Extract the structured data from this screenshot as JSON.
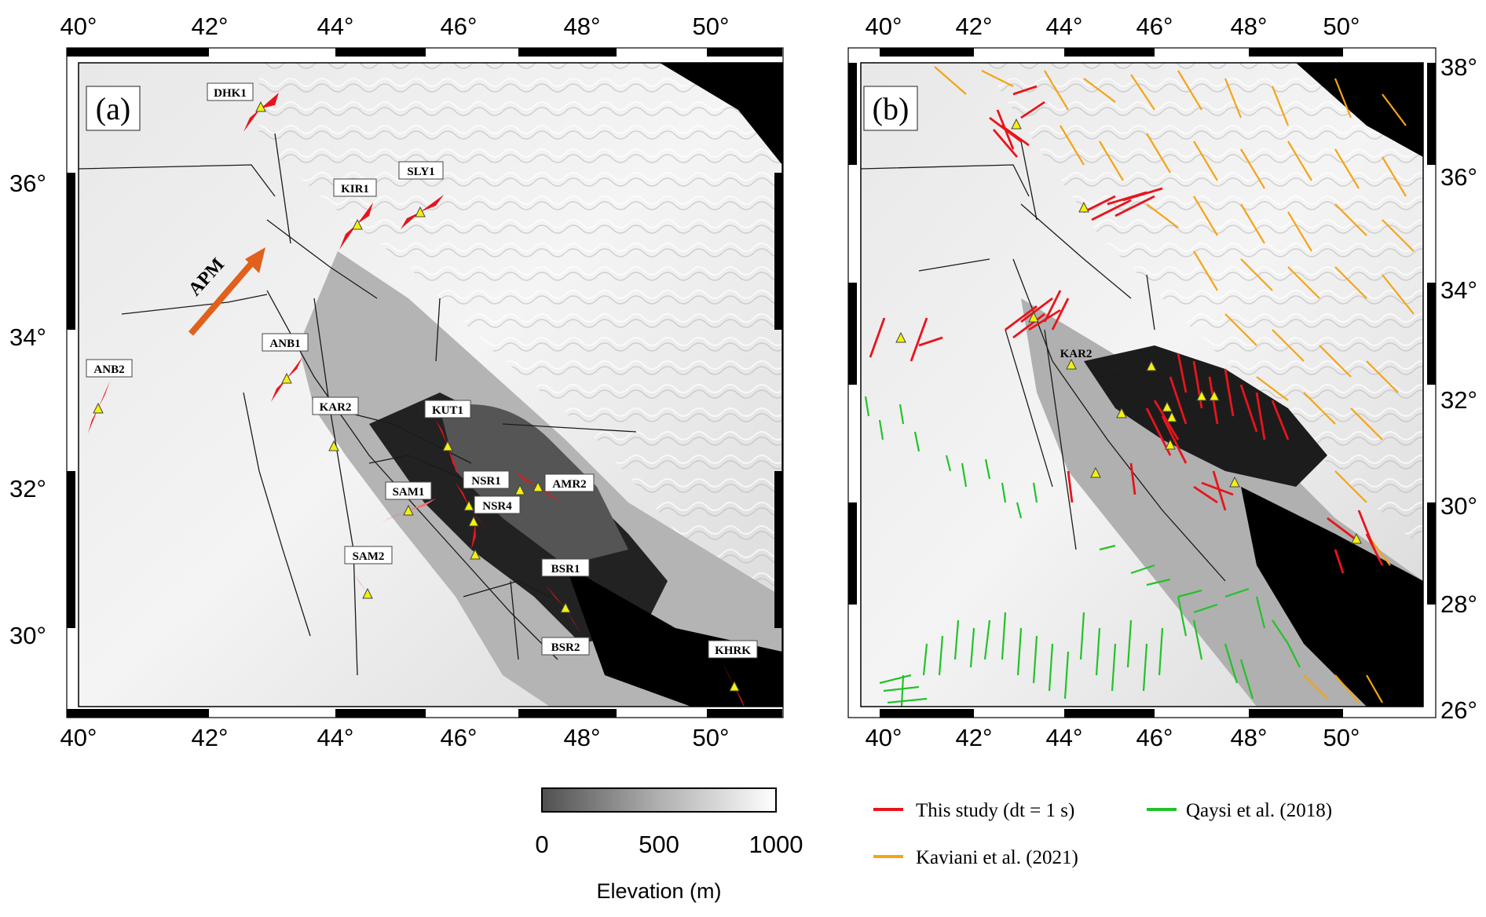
{
  "panels": [
    {
      "id": "a",
      "letter": "(a)",
      "lon_ticks": [
        "40°",
        "42°",
        "44°",
        "46°",
        "48°",
        "50°"
      ],
      "lat_ticks": [
        "30°",
        "32°",
        "34°",
        "36°"
      ],
      "apm_label": "APM",
      "stations": [
        {
          "code": "DHK1"
        },
        {
          "code": "KIR1"
        },
        {
          "code": "SLY1"
        },
        {
          "code": "ANB1"
        },
        {
          "code": "ANB2"
        },
        {
          "code": "KAR2"
        },
        {
          "code": "KUT1"
        },
        {
          "code": "SAM1"
        },
        {
          "code": "NSR1"
        },
        {
          "code": "NSR4"
        },
        {
          "code": "AMR2"
        },
        {
          "code": "SAM2"
        },
        {
          "code": "BSR1"
        },
        {
          "code": "BSR2"
        },
        {
          "code": "KHRK"
        }
      ]
    },
    {
      "id": "b",
      "letter": "(b)",
      "lon_ticks": [
        "40°",
        "42°",
        "44°",
        "46°",
        "48°",
        "50°"
      ],
      "lat_ticks": [
        "26°",
        "28°",
        "30°",
        "32°",
        "34°",
        "36°",
        "38°"
      ],
      "stations": [
        {
          "code": "KAR2"
        }
      ]
    }
  ],
  "colorbar": {
    "ticks": [
      "0",
      "500",
      "1000"
    ],
    "title": "Elevation (m)"
  },
  "legend": [
    {
      "label": "This study (dt = 1 s)",
      "color": "#e8141c"
    },
    {
      "label": "Qaysi et al. (2018)",
      "color": "#22c22a"
    },
    {
      "label": "Kaviani et al. (2021)",
      "color": "#f5a416"
    }
  ],
  "colors": {
    "station_fill": "#f2f20c",
    "apm_arrow": "#e0601c",
    "fault_line": "#1a1a1a"
  }
}
